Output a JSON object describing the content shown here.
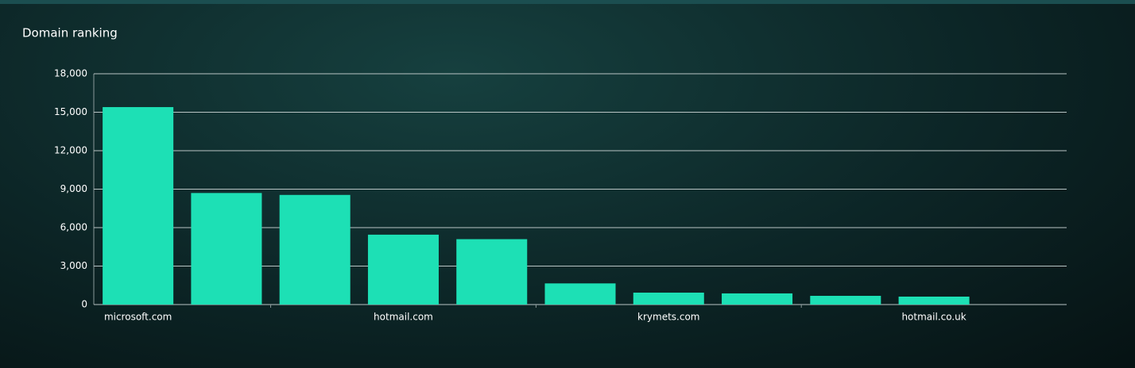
{
  "chart_data": {
    "type": "bar",
    "title": "Domain ranking",
    "categories": [
      "microsoft.com",
      null,
      null,
      "hotmail.com",
      null,
      null,
      "krymets.com",
      null,
      null,
      "hotmail.co.uk",
      null
    ],
    "values": [
      15400,
      8700,
      8550,
      5450,
      5100,
      1650,
      930,
      870,
      680,
      620,
      null
    ],
    "color": "#1de0b5",
    "ylim": [
      0,
      18000
    ],
    "yticks": [
      0,
      {
        "value": 3000,
        "label": "3,000"
      },
      {
        "value": 6000,
        "label": "6,000"
      },
      {
        "value": 9000,
        "label": "9,000"
      },
      {
        "value": 12000,
        "label": "12,000"
      },
      {
        "value": 15000,
        "label": "15,000"
      },
      {
        "value": 18000,
        "label": "18,000"
      }
    ],
    "grid": true
  }
}
